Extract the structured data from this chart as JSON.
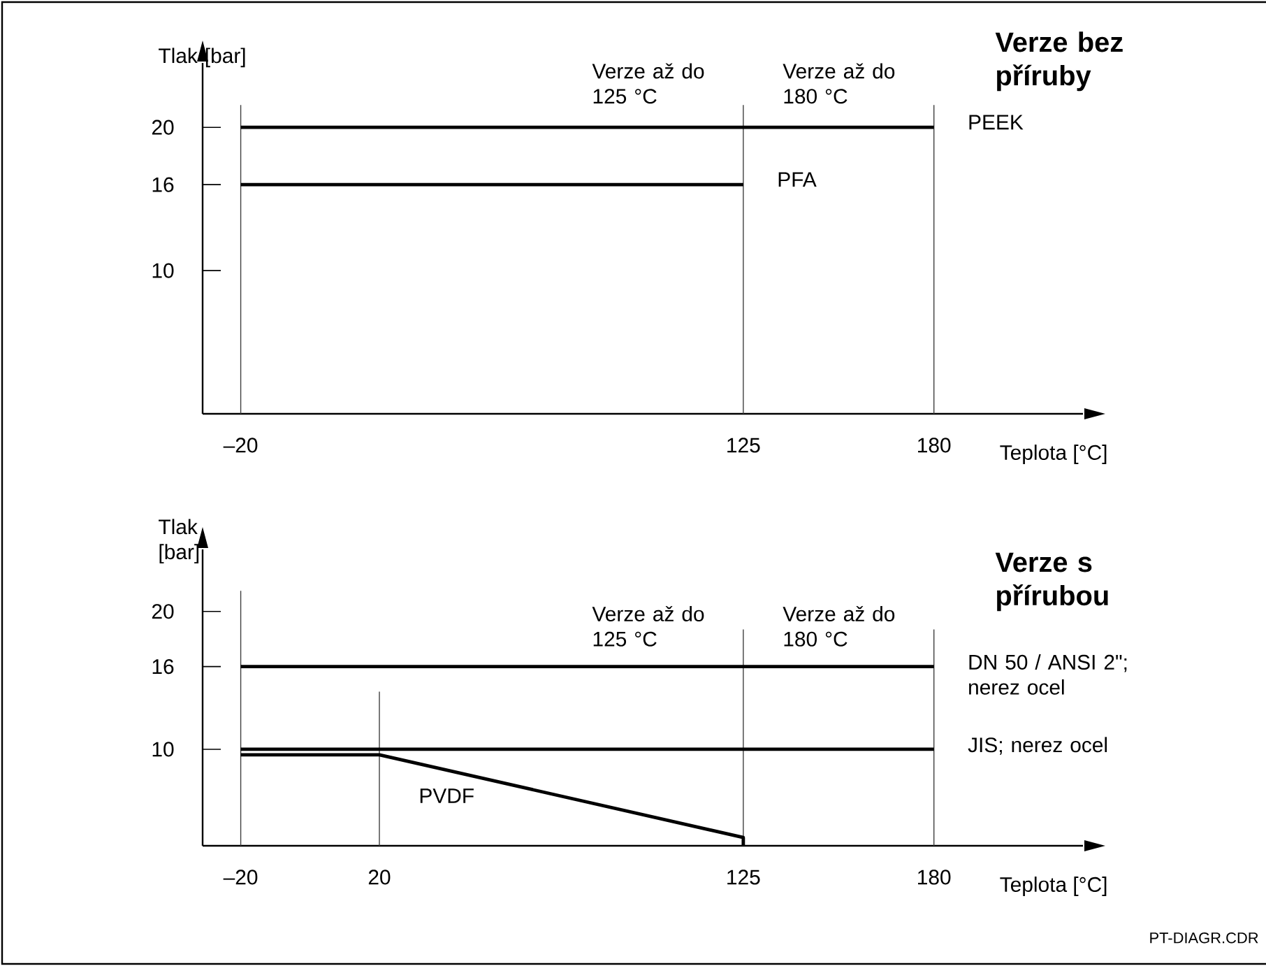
{
  "chart_data": [
    {
      "type": "line",
      "title": "Verze bez příruby",
      "xlabel": "Teplota [°C]",
      "ylabel": "Tlak [bar]",
      "xlim": [
        -31,
        223
      ],
      "ylim": [
        0,
        24.5
      ],
      "xticks": [
        {
          "value": -20,
          "label": "–20"
        },
        125,
        180
      ],
      "yticks": [
        10,
        16,
        20
      ],
      "series": [
        {
          "name": "PEEK",
          "color": "#000000",
          "x": [
            -20,
            180
          ],
          "values": [
            20,
            20
          ]
        },
        {
          "name": "PFA",
          "color": "#000000",
          "x": [
            -20,
            125
          ],
          "values": [
            16,
            16
          ]
        }
      ],
      "ref_lines": [
        {
          "axis": "x",
          "value": -20
        },
        {
          "axis": "x",
          "value": 125,
          "label": "Verze až do 125 °C"
        },
        {
          "axis": "x",
          "value": 180,
          "label": "Verze až do 180 °C"
        }
      ],
      "marker": "none",
      "line_style": "solid"
    },
    {
      "type": "line",
      "title": "Verze s přírubou",
      "xlabel": "Teplota [°C]",
      "ylabel": "Tlak [bar]",
      "xlim": [
        -31,
        223
      ],
      "ylim": [
        3,
        24.5
      ],
      "xticks": [
        {
          "value": -20,
          "label": "–20"
        },
        20,
        125,
        180
      ],
      "yticks": [
        10,
        16,
        20
      ],
      "series": [
        {
          "name": "DN 50 / ANSI 2\"; nerez ocel",
          "color": "#000000",
          "x": [
            -20,
            180
          ],
          "values": [
            16,
            16
          ]
        },
        {
          "name": "JIS; nerez ocel",
          "color": "#000000",
          "x": [
            -20,
            180
          ],
          "values": [
            10,
            10
          ]
        },
        {
          "name": "PVDF",
          "color": "#000000",
          "x": [
            -20,
            20,
            125,
            125
          ],
          "values": [
            9.6,
            9.6,
            3.6,
            3
          ]
        }
      ],
      "ref_lines": [
        {
          "axis": "x",
          "value": -20
        },
        {
          "axis": "x",
          "value": 20
        },
        {
          "axis": "x",
          "value": 125,
          "label": "Verze až do 125 °C"
        },
        {
          "axis": "x",
          "value": 180,
          "label": "Verze až do 180 °C"
        }
      ],
      "annotations": [
        "PT-DIAGR.CDR"
      ],
      "marker": "none",
      "line_style": "solid"
    }
  ]
}
